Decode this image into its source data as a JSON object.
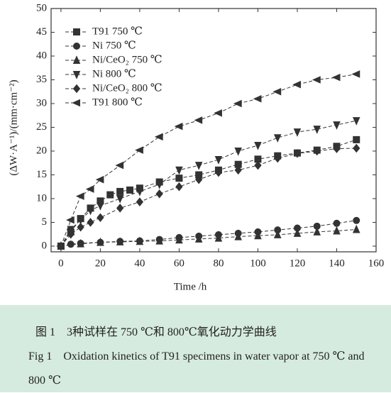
{
  "chart_data": {
    "type": "line",
    "xlabel": "Time /h",
    "ylabel": "(ΔW·A⁻¹)/(mm·cm⁻²)",
    "xlim": [
      -5,
      160
    ],
    "ylim": [
      -1.2,
      50
    ],
    "xticks": [
      0,
      20,
      40,
      60,
      80,
      100,
      120,
      140,
      160
    ],
    "yticks": [
      0,
      5,
      10,
      15,
      20,
      25,
      30,
      35,
      40,
      45,
      50
    ],
    "legend": "upper left",
    "series": [
      {
        "name": "T91 750 ℃",
        "color": "#333333",
        "marker": "square",
        "x": [
          0,
          5,
          10,
          15,
          20,
          25,
          30,
          35,
          40,
          50,
          60,
          70,
          80,
          90,
          100,
          110,
          120,
          130,
          140,
          150
        ],
        "values": [
          0,
          3,
          5.8,
          8,
          9.5,
          10.8,
          11.5,
          11.8,
          12.2,
          13.5,
          14.3,
          15,
          16,
          17.2,
          18.3,
          19,
          19.6,
          20.2,
          21,
          22.4
        ]
      },
      {
        "name": "Ni 750 ℃",
        "color": "#333333",
        "marker": "circle",
        "x": [
          0,
          5,
          10,
          20,
          30,
          40,
          50,
          60,
          70,
          80,
          90,
          100,
          110,
          120,
          130,
          140,
          150
        ],
        "values": [
          0,
          0.4,
          0.6,
          0.8,
          1,
          1.1,
          1.4,
          1.8,
          2.1,
          2.4,
          2.7,
          3,
          3.4,
          3.8,
          4.2,
          4.8,
          5.4
        ]
      },
      {
        "name": "Ni/CeO₂ 750 ℃",
        "color": "#333333",
        "marker": "triangle-up",
        "x": [
          0,
          10,
          20,
          30,
          40,
          50,
          60,
          70,
          80,
          90,
          100,
          110,
          120,
          130,
          140,
          150
        ],
        "values": [
          0,
          0.5,
          0.8,
          0.9,
          1,
          1.1,
          1.3,
          1.5,
          1.7,
          2,
          2.2,
          2.4,
          2.7,
          3,
          3.2,
          3.5
        ]
      },
      {
        "name": "Ni 800 ℃",
        "color": "#333333",
        "marker": "triangle-down",
        "x": [
          0,
          5,
          10,
          15,
          20,
          30,
          40,
          50,
          60,
          70,
          80,
          90,
          100,
          110,
          120,
          130,
          140,
          150
        ],
        "values": [
          0,
          3.5,
          5.5,
          7.5,
          8.5,
          10,
          11.5,
          13,
          16,
          17,
          18.2,
          20,
          21.2,
          22.8,
          24,
          24.6,
          25.5,
          26.4
        ]
      },
      {
        "name": "Ni/CeO₂ 800 ℃",
        "color": "#333333",
        "marker": "diamond",
        "x": [
          0,
          5,
          10,
          15,
          20,
          30,
          40,
          50,
          60,
          70,
          80,
          90,
          100,
          110,
          120,
          130,
          140,
          150
        ],
        "values": [
          0,
          2.5,
          4,
          5,
          6,
          8,
          9.3,
          11,
          12.5,
          14,
          15.5,
          16,
          17,
          18.5,
          19.5,
          20,
          20.5,
          20.6
        ]
      },
      {
        "name": "T91 800 ℃",
        "color": "#333333",
        "marker": "triangle-left",
        "x": [
          0,
          5,
          10,
          15,
          20,
          30,
          40,
          50,
          60,
          70,
          80,
          90,
          100,
          110,
          120,
          130,
          140,
          150
        ],
        "values": [
          0,
          5.5,
          10.5,
          12,
          14,
          17,
          20.2,
          23,
          25.2,
          26.5,
          28,
          30,
          31,
          32.5,
          34,
          35,
          35.5,
          36.2
        ]
      }
    ]
  },
  "caption": {
    "zh": "图 1　3种试样在 750 ℃和 800℃氧化动力学曲线",
    "en": "Fig 1　Oxidation kinetics of T91 specimens in water vapor at 750 ℃ and 800 ℃"
  }
}
